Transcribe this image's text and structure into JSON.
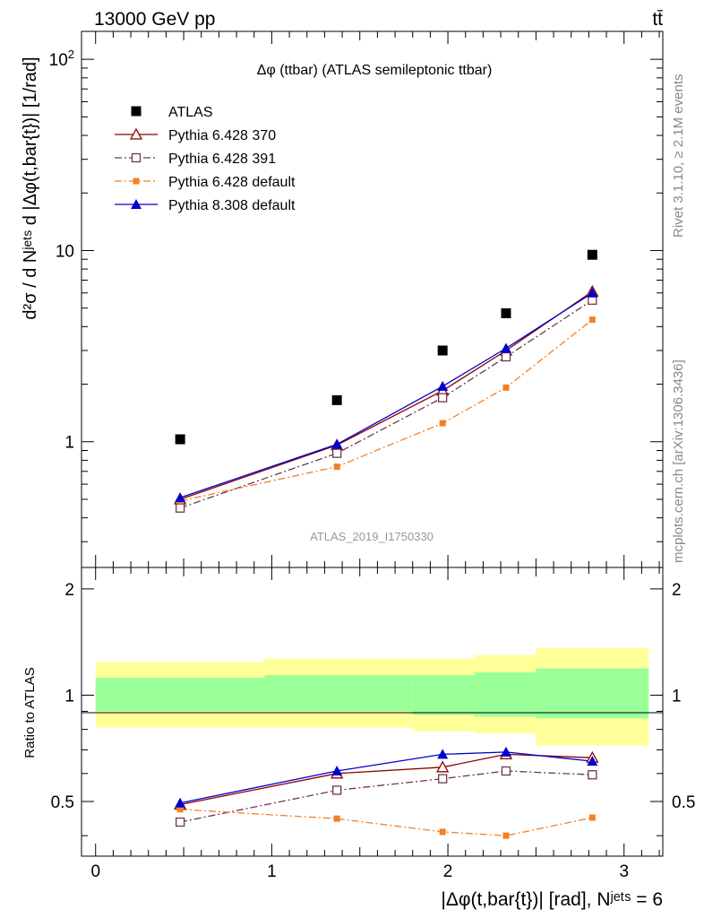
{
  "header": {
    "left": "13000 GeV pp",
    "right": "tt̄"
  },
  "side_labels": {
    "rivet": "Rivet 3.1.10, ≥ 2.1M events",
    "mcplots": "mcplots.cern.ch [arXiv:1306.3436]"
  },
  "colors": {
    "atlas": "#000000",
    "p370": "#8b0000",
    "p391": "#6b3a4a",
    "p6def": "#f58025",
    "p8def": "#0000cc",
    "band_outer": "#ffff99",
    "band_inner": "#99ff99"
  },
  "chart_data": [
    {
      "type": "line",
      "title": "Δφ (ttbar) (ATLAS semileptonic ttbar)",
      "analysis_label": "ATLAS_2019_I1750330",
      "ylabel": "d²σ / d Nʲᵉᵗˢ d |Δφ(t,bar{t})| [1/rad]",
      "yscale": "log",
      "ylim": [
        0.22,
        140
      ],
      "xlim": [
        -0.08,
        3.22
      ],
      "y_ticks": [
        "1",
        "10",
        "10²"
      ],
      "legend_position": "top-left",
      "x": [
        0.48,
        1.37,
        1.97,
        2.33,
        2.82
      ],
      "series": [
        {
          "name": "ATLAS",
          "marker": "square-filled",
          "values": [
            1.03,
            1.65,
            3.0,
            4.7,
            9.5
          ]
        },
        {
          "name": "Pythia 6.428 370",
          "marker": "triangle-open",
          "values": [
            0.5,
            0.96,
            1.85,
            3.0,
            6.1
          ]
        },
        {
          "name": "Pythia 6.428 391",
          "marker": "square-open",
          "values": [
            0.45,
            0.87,
            1.7,
            2.78,
            5.5
          ]
        },
        {
          "name": "Pythia 6.428 default",
          "marker": "square-small",
          "values": [
            0.49,
            0.74,
            1.25,
            1.92,
            4.35
          ]
        },
        {
          "name": "Pythia 8.308 default",
          "marker": "triangle-filled",
          "values": [
            0.51,
            0.97,
            1.95,
            3.08,
            6.0
          ]
        }
      ]
    },
    {
      "type": "line",
      "ylabel": "Ratio to ATLAS",
      "xlabel": "|Δφ(t,bar{t})| [rad], Nʲᵉᵗˢ = 6",
      "ylim": [
        0.35,
        2.3
      ],
      "xlim": [
        -0.08,
        3.22
      ],
      "x_ticks": [
        "0",
        "1",
        "2",
        "3"
      ],
      "y_ticks": [
        "0.5",
        "1",
        "2"
      ],
      "bands": [
        {
          "x_from": 0.0,
          "x_to": 0.96,
          "outer": [
            0.81,
            1.24
          ],
          "inner": [
            0.9,
            1.12
          ]
        },
        {
          "x_from": 0.96,
          "x_to": 1.8,
          "outer": [
            0.81,
            1.27
          ],
          "inner": [
            0.9,
            1.14
          ]
        },
        {
          "x_from": 1.8,
          "x_to": 2.15,
          "outer": [
            0.79,
            1.27
          ],
          "inner": [
            0.88,
            1.14
          ]
        },
        {
          "x_from": 2.15,
          "x_to": 2.5,
          "outer": [
            0.78,
            1.3
          ],
          "inner": [
            0.87,
            1.16
          ]
        },
        {
          "x_from": 2.5,
          "x_to": 3.14,
          "outer": [
            0.72,
            1.36
          ],
          "inner": [
            0.86,
            1.19
          ]
        }
      ],
      "x": [
        0.48,
        1.37,
        1.97,
        2.33,
        2.82
      ],
      "series": [
        {
          "name": "Pythia 6.428 370",
          "values": [
            0.49,
            0.6,
            0.625,
            0.68,
            0.665
          ]
        },
        {
          "name": "Pythia 6.428 391",
          "values": [
            0.437,
            0.538,
            0.58,
            0.61,
            0.595
          ]
        },
        {
          "name": "Pythia 6.428 default",
          "values": [
            0.475,
            0.447,
            0.41,
            0.4,
            0.45
          ]
        },
        {
          "name": "Pythia 8.308 default",
          "values": [
            0.495,
            0.61,
            0.68,
            0.69,
            0.65
          ]
        }
      ]
    }
  ]
}
